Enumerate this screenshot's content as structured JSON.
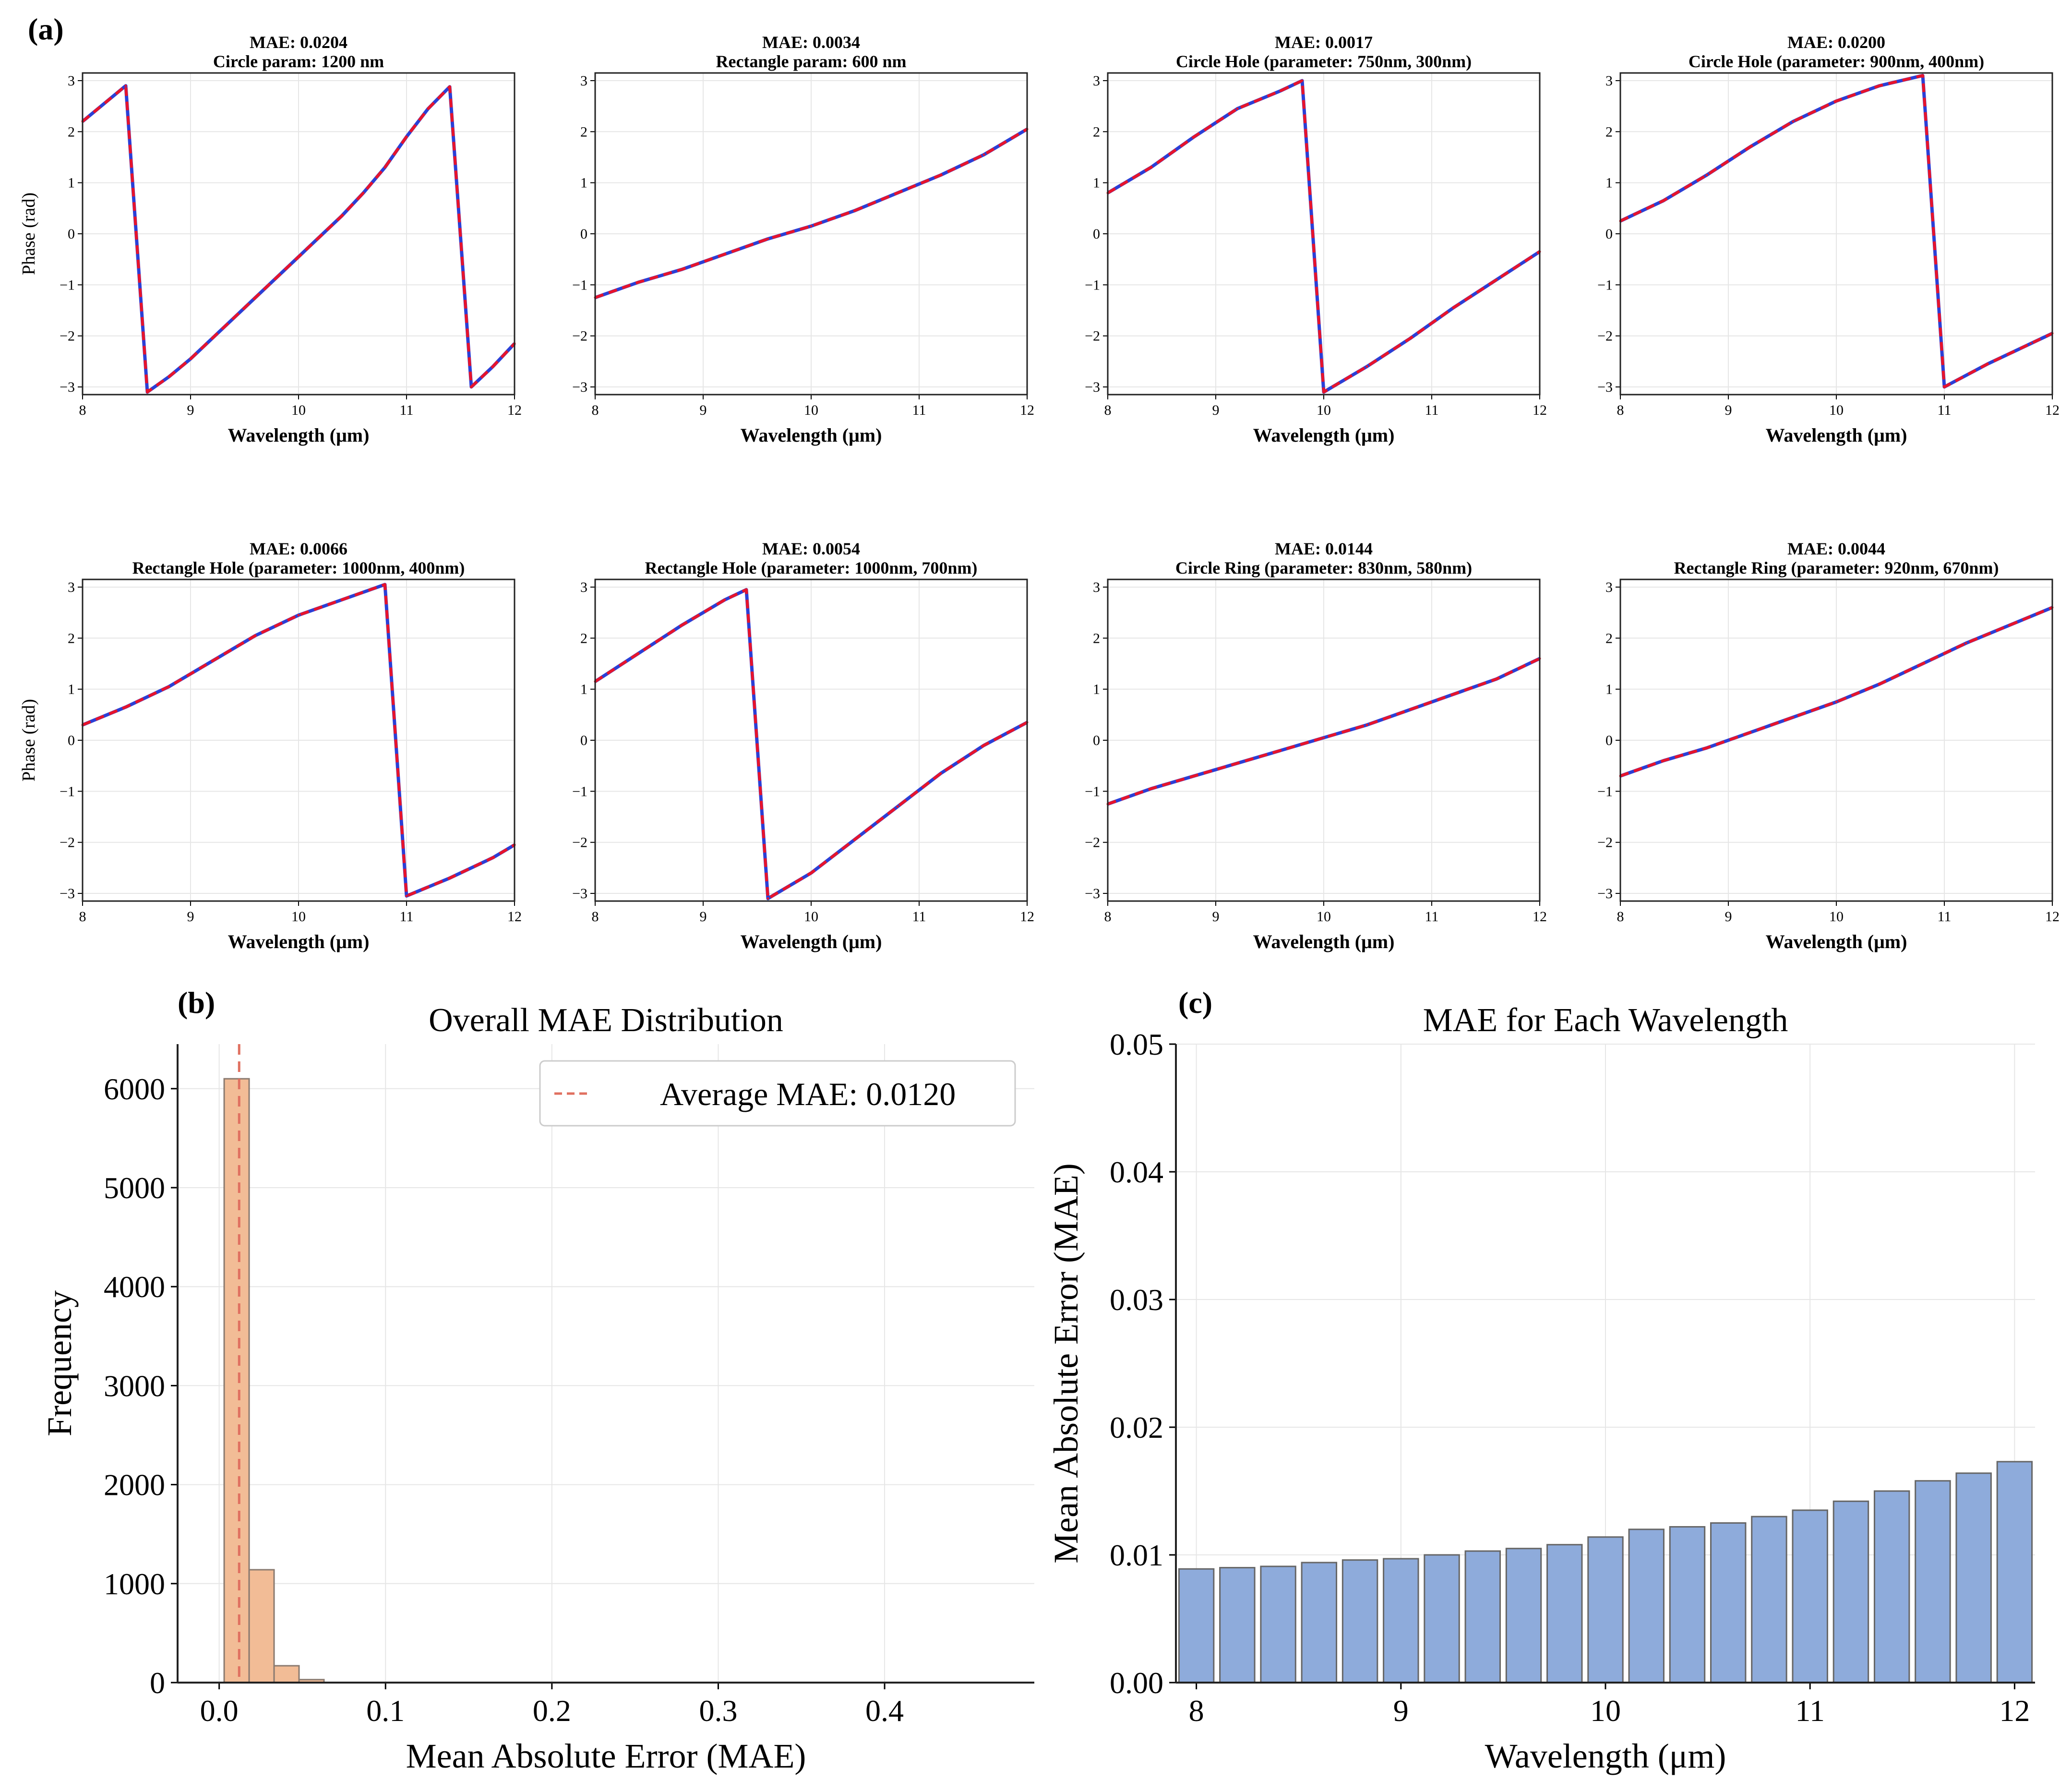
{
  "panel_labels": {
    "a": "(a)",
    "b": "(b)",
    "c": "(c)"
  },
  "colors": {
    "true_line": "#2b3fd6",
    "pred_line": "#e8142b",
    "hist_fill": "#f2bc96",
    "hist_edge": "#8a7a70",
    "avg_line": "#e07060",
    "bar_fill": "#8eabdb",
    "bar_edge": "#666666",
    "grid": "#e6e6e6"
  },
  "chart_data": [
    {
      "type": "line",
      "title": "MAE: 0.0204",
      "subtitle": "Circle param: 1200 nm",
      "xlabel": "Wavelength (μm)",
      "ylabel": "Phase (rad)",
      "xlim": [
        8,
        12
      ],
      "ylim": [
        -3.15,
        3.15
      ],
      "xticks": [
        "8",
        "9",
        "10",
        "11",
        "12"
      ],
      "yticks": [
        "3",
        "2",
        "1",
        "0",
        "−1",
        "−2",
        "−3"
      ],
      "x": [
        8.0,
        8.4,
        8.6,
        8.8,
        9.0,
        9.2,
        9.4,
        9.6,
        9.8,
        10.0,
        10.2,
        10.4,
        10.6,
        10.8,
        11.0,
        11.2,
        11.4,
        11.6,
        11.8,
        12.0
      ],
      "y": [
        2.2,
        2.9,
        -3.1,
        -2.8,
        -2.45,
        -2.05,
        -1.65,
        -1.25,
        -0.85,
        -0.45,
        -0.05,
        0.35,
        0.8,
        1.3,
        1.9,
        2.45,
        2.88,
        -3.0,
        -2.6,
        -2.15
      ]
    },
    {
      "type": "line",
      "title": "MAE: 0.0034",
      "subtitle": "Rectangle param: 600 nm",
      "xlabel": "Wavelength (μm)",
      "ylabel": "",
      "xlim": [
        8,
        12
      ],
      "ylim": [
        -3.15,
        3.15
      ],
      "xticks": [
        "8",
        "9",
        "10",
        "11",
        "12"
      ],
      "yticks": [
        "3",
        "2",
        "1",
        "0",
        "−1",
        "−2",
        "−3"
      ],
      "x": [
        8.0,
        8.4,
        8.8,
        9.2,
        9.6,
        10.0,
        10.4,
        10.8,
        11.2,
        11.6,
        12.0
      ],
      "y": [
        -1.25,
        -0.95,
        -0.7,
        -0.4,
        -0.1,
        0.15,
        0.45,
        0.8,
        1.15,
        1.55,
        2.05
      ]
    },
    {
      "type": "line",
      "title": "MAE: 0.0017",
      "subtitle": "Circle Hole (parameter: 750nm, 300nm)",
      "xlabel": "Wavelength (μm)",
      "ylabel": "",
      "xlim": [
        8,
        12
      ],
      "ylim": [
        -3.15,
        3.15
      ],
      "xticks": [
        "8",
        "9",
        "10",
        "11",
        "12"
      ],
      "yticks": [
        "3",
        "2",
        "1",
        "0",
        "−1",
        "−2",
        "−3"
      ],
      "x": [
        8.0,
        8.4,
        8.8,
        9.2,
        9.6,
        9.8,
        10.0,
        10.4,
        10.8,
        11.2,
        11.6,
        12.0
      ],
      "y": [
        0.8,
        1.3,
        1.9,
        2.45,
        2.8,
        3.0,
        -3.1,
        -2.6,
        -2.05,
        -1.45,
        -0.9,
        -0.35
      ]
    },
    {
      "type": "line",
      "title": "MAE: 0.0200",
      "subtitle": "Circle Hole (parameter: 900nm, 400nm)",
      "xlabel": "Wavelength (μm)",
      "ylabel": "",
      "xlim": [
        8,
        12
      ],
      "ylim": [
        -3.15,
        3.15
      ],
      "xticks": [
        "8",
        "9",
        "10",
        "11",
        "12"
      ],
      "yticks": [
        "3",
        "2",
        "1",
        "0",
        "−1",
        "−2",
        "−3"
      ],
      "x": [
        8.0,
        8.4,
        8.8,
        9.2,
        9.6,
        10.0,
        10.4,
        10.8,
        11.0,
        11.4,
        11.8,
        12.0
      ],
      "y": [
        0.25,
        0.65,
        1.15,
        1.7,
        2.2,
        2.6,
        2.9,
        3.1,
        -3.0,
        -2.55,
        -2.15,
        -1.95
      ]
    },
    {
      "type": "line",
      "title": "MAE: 0.0066",
      "subtitle": "Rectangle Hole (parameter: 1000nm, 400nm)",
      "xlabel": "Wavelength (μm)",
      "ylabel": "Phase (rad)",
      "xlim": [
        8,
        12
      ],
      "ylim": [
        -3.15,
        3.15
      ],
      "xticks": [
        "8",
        "9",
        "10",
        "11",
        "12"
      ],
      "yticks": [
        "3",
        "2",
        "1",
        "0",
        "−1",
        "−2",
        "−3"
      ],
      "x": [
        8.0,
        8.4,
        8.8,
        9.2,
        9.6,
        10.0,
        10.4,
        10.8,
        11.0,
        11.4,
        11.8,
        12.0
      ],
      "y": [
        0.3,
        0.65,
        1.05,
        1.55,
        2.05,
        2.45,
        2.75,
        3.05,
        -3.05,
        -2.7,
        -2.3,
        -2.05
      ]
    },
    {
      "type": "line",
      "title": "MAE: 0.0054",
      "subtitle": "Rectangle Hole (parameter: 1000nm, 700nm)",
      "xlabel": "Wavelength (μm)",
      "ylabel": "",
      "xlim": [
        8,
        12
      ],
      "ylim": [
        -3.15,
        3.15
      ],
      "xticks": [
        "8",
        "9",
        "10",
        "11",
        "12"
      ],
      "yticks": [
        "3",
        "2",
        "1",
        "0",
        "−1",
        "−2",
        "−3"
      ],
      "x": [
        8.0,
        8.4,
        8.8,
        9.2,
        9.4,
        9.6,
        10.0,
        10.4,
        10.8,
        11.2,
        11.6,
        12.0
      ],
      "y": [
        1.15,
        1.7,
        2.25,
        2.75,
        2.95,
        -3.1,
        -2.6,
        -1.95,
        -1.3,
        -0.65,
        -0.1,
        0.35
      ]
    },
    {
      "type": "line",
      "title": "MAE: 0.0144",
      "subtitle": "Circle Ring (parameter: 830nm, 580nm)",
      "xlabel": "Wavelength (μm)",
      "ylabel": "",
      "xlim": [
        8,
        12
      ],
      "ylim": [
        -3.15,
        3.15
      ],
      "xticks": [
        "8",
        "9",
        "10",
        "11",
        "12"
      ],
      "yticks": [
        "3",
        "2",
        "1",
        "0",
        "−1",
        "−2",
        "−3"
      ],
      "x": [
        8.0,
        8.4,
        8.8,
        9.2,
        9.6,
        10.0,
        10.4,
        10.8,
        11.2,
        11.6,
        12.0
      ],
      "y": [
        -1.25,
        -0.95,
        -0.7,
        -0.45,
        -0.2,
        0.05,
        0.3,
        0.6,
        0.9,
        1.2,
        1.6
      ]
    },
    {
      "type": "line",
      "title": "MAE: 0.0044",
      "subtitle": "Rectangle Ring (parameter: 920nm, 670nm)",
      "xlabel": "Wavelength (μm)",
      "ylabel": "",
      "xlim": [
        8,
        12
      ],
      "ylim": [
        -3.15,
        3.15
      ],
      "xticks": [
        "8",
        "9",
        "10",
        "11",
        "12"
      ],
      "yticks": [
        "3",
        "2",
        "1",
        "0",
        "−1",
        "−2",
        "−3"
      ],
      "x": [
        8.0,
        8.4,
        8.8,
        9.2,
        9.6,
        10.0,
        10.4,
        10.8,
        11.2,
        11.6,
        12.0
      ],
      "y": [
        -0.7,
        -0.4,
        -0.15,
        0.15,
        0.45,
        0.75,
        1.1,
        1.5,
        1.9,
        2.25,
        2.6
      ]
    },
    {
      "type": "bar",
      "title": "Overall MAE Distribution",
      "xlabel": "Mean Absolute Error (MAE)",
      "ylabel": "Frequency",
      "xlim": [
        -0.025,
        0.49
      ],
      "ylim": [
        0,
        6450
      ],
      "xticks": [
        0.0,
        0.1,
        0.2,
        0.3,
        0.4
      ],
      "xtick_labels": [
        "0.0",
        "0.1",
        "0.2",
        "0.3",
        "0.4"
      ],
      "yticks": [
        0,
        1000,
        2000,
        3000,
        4000,
        5000,
        6000
      ],
      "ytick_labels": [
        "0",
        "1000",
        "2000",
        "3000",
        "4000",
        "5000",
        "6000"
      ],
      "bin_edges": [
        0.003,
        0.018,
        0.033,
        0.048,
        0.063
      ],
      "values": [
        6100,
        1140,
        170,
        30
      ],
      "average_value": 0.012,
      "legend": "Average MAE: 0.0120",
      "legend_position": "upper right"
    },
    {
      "type": "bar",
      "title": "MAE for Each Wavelength",
      "xlabel": "Wavelength (μm)",
      "ylabel": "Mean Absolute Error (MAE)",
      "xlim": [
        7.9,
        12.1
      ],
      "ylim": [
        0,
        0.05
      ],
      "xticks": [
        8,
        9,
        10,
        11,
        12
      ],
      "xtick_labels": [
        "8",
        "9",
        "10",
        "11",
        "12"
      ],
      "yticks": [
        0.0,
        0.01,
        0.02,
        0.03,
        0.04,
        0.05
      ],
      "ytick_labels": [
        "0.00",
        "0.01",
        "0.02",
        "0.03",
        "0.04",
        "0.05"
      ],
      "x": [
        8.0,
        8.2,
        8.4,
        8.6,
        8.8,
        9.0,
        9.2,
        9.4,
        9.6,
        9.8,
        10.0,
        10.2,
        10.4,
        10.6,
        10.8,
        11.0,
        11.2,
        11.4,
        11.6,
        11.8,
        12.0
      ],
      "values": [
        0.0089,
        0.009,
        0.0091,
        0.0094,
        0.0096,
        0.0097,
        0.01,
        0.0103,
        0.0105,
        0.0108,
        0.0114,
        0.012,
        0.0122,
        0.0125,
        0.013,
        0.0135,
        0.0142,
        0.015,
        0.0158,
        0.0164,
        0.0173
      ]
    }
  ]
}
